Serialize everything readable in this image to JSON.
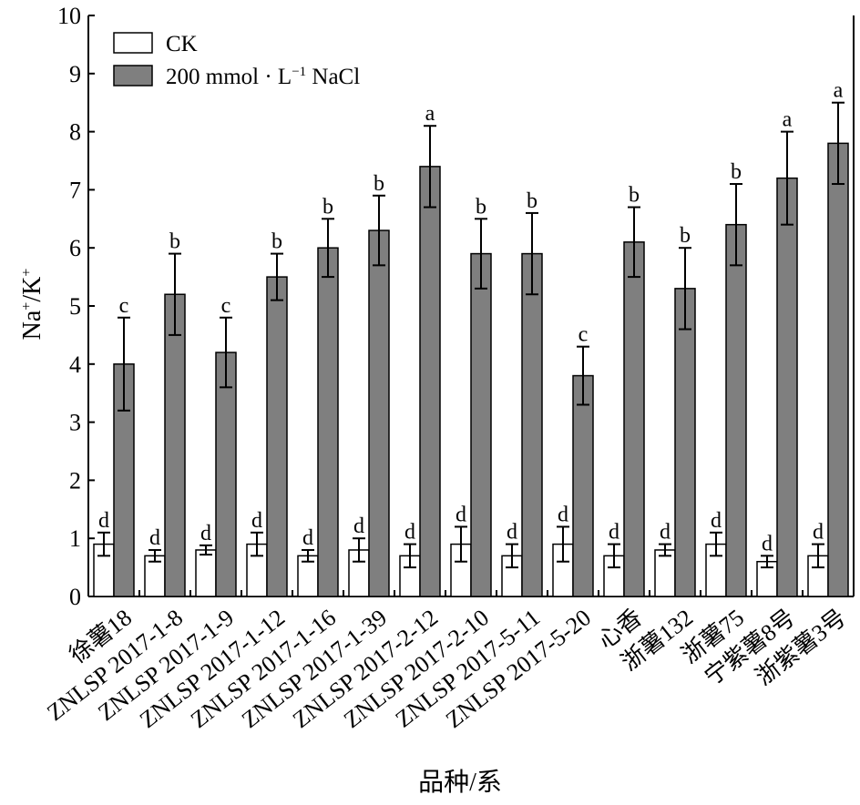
{
  "chart_data": {
    "type": "bar",
    "xlabel": "品种/系",
    "ylabel_parts": {
      "na": "Na",
      "plus1": "+",
      "sep": "/K",
      "plus2": "+"
    },
    "ylim": [
      0,
      10
    ],
    "yticks": [
      0,
      1,
      2,
      3,
      4,
      5,
      6,
      7,
      8,
      9,
      10
    ],
    "legend_position": "top-left",
    "grid": false,
    "categories": [
      "徐薯18",
      "ZNLSP 2017-1-8",
      "ZNLSP 2017-1-9",
      "ZNLSP 2017-1-12",
      "ZNLSP 2017-1-16",
      "ZNLSP 2017-1-39",
      "ZNLSP 2017-2-12",
      "ZNLSP 2017-2-10",
      "ZNLSP 2017-5-11",
      "ZNLSP 2017-5-20",
      "心香",
      "浙薯132",
      "浙薯75",
      "宁紫薯8号",
      "浙紫薯3号"
    ],
    "series": [
      {
        "name": "CK",
        "color": "#ffffff",
        "values": [
          0.9,
          0.7,
          0.8,
          0.9,
          0.7,
          0.8,
          0.7,
          0.9,
          0.7,
          0.9,
          0.7,
          0.8,
          0.9,
          0.6,
          0.7
        ],
        "errors": [
          0.2,
          0.1,
          0.08,
          0.2,
          0.1,
          0.2,
          0.2,
          0.3,
          0.2,
          0.3,
          0.2,
          0.1,
          0.2,
          0.1,
          0.2
        ],
        "labels": [
          "d",
          "d",
          "d",
          "d",
          "d",
          "d",
          "d",
          "d",
          "d",
          "d",
          "d",
          "d",
          "d",
          "d",
          "d"
        ]
      },
      {
        "name_parts": {
          "main": "200 mmol · L",
          "sup": "−1",
          "tail": " NaCl"
        },
        "color": "#7f7f7f",
        "values": [
          4.0,
          5.2,
          4.2,
          5.5,
          6.0,
          6.3,
          7.4,
          5.9,
          5.9,
          3.8,
          6.1,
          5.3,
          6.4,
          7.2,
          7.8
        ],
        "errors": [
          0.8,
          0.7,
          0.6,
          0.4,
          0.5,
          0.6,
          0.7,
          0.6,
          0.7,
          0.5,
          0.6,
          0.7,
          0.7,
          0.8,
          0.7
        ],
        "labels": [
          "c",
          "b",
          "c",
          "b",
          "b",
          "b",
          "a",
          "b",
          "b",
          "c",
          "b",
          "b",
          "b",
          "a",
          "a"
        ]
      }
    ]
  }
}
